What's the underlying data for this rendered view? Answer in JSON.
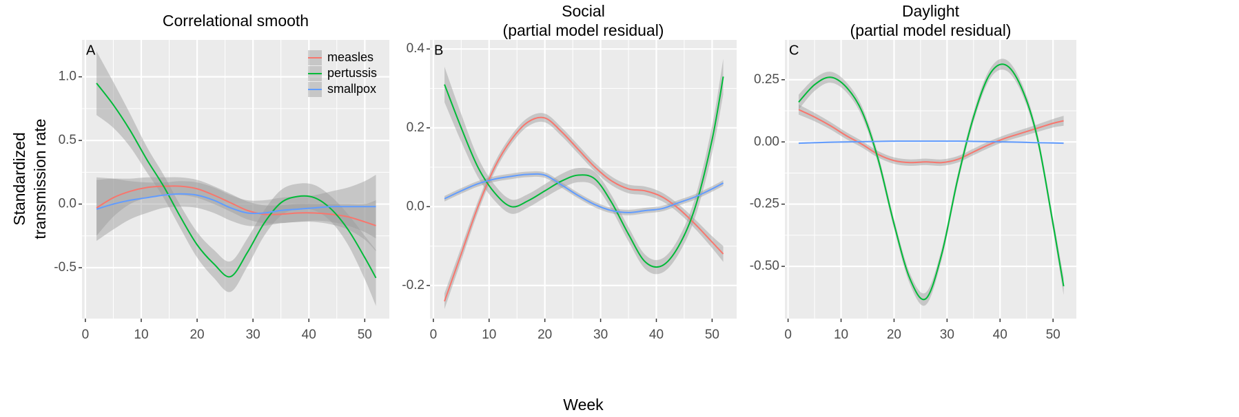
{
  "chart_data": [
    {
      "type": "line",
      "title": "Correlational smooth",
      "label": "A",
      "y_label": [
        "Standardized",
        "transmission rate"
      ],
      "x": [
        2,
        5,
        8,
        11,
        14,
        17,
        20,
        23,
        26,
        29,
        32,
        35,
        38,
        41,
        44,
        47,
        50,
        52
      ],
      "xlim": [
        -0.6,
        54.4
      ],
      "xticks": [
        0,
        10,
        20,
        30,
        40,
        50
      ],
      "ylim": [
        -0.9,
        1.29
      ],
      "yticks": [
        -0.5,
        {
          "value": 0,
          "label": "0.0"
        },
        0.5,
        {
          "value": 1,
          "label": "1.0"
        }
      ],
      "grid": true,
      "legend": "top-right",
      "band_color": "#999999",
      "series": [
        {
          "name": "measles",
          "color": "#F8766D",
          "values": [
            -0.03,
            0.05,
            0.1,
            0.13,
            0.14,
            0.14,
            0.12,
            0.07,
            0.01,
            -0.05,
            -0.08,
            -0.08,
            -0.07,
            -0.07,
            -0.08,
            -0.1,
            -0.14,
            -0.17
          ],
          "ci": [
            0.22,
            0.15,
            0.1,
            0.08,
            0.07,
            0.07,
            0.07,
            0.07,
            0.07,
            0.07,
            0.07,
            0.07,
            0.07,
            0.07,
            0.08,
            0.1,
            0.14,
            0.2
          ]
        },
        {
          "name": "pertussis",
          "color": "#00BA38",
          "values": [
            0.95,
            0.78,
            0.58,
            0.35,
            0.14,
            -0.1,
            -0.32,
            -0.47,
            -0.57,
            -0.38,
            -0.15,
            0.01,
            0.06,
            0.05,
            -0.04,
            -0.2,
            -0.42,
            -0.58
          ],
          "ci": [
            0.25,
            0.18,
            0.13,
            0.1,
            0.09,
            0.09,
            0.1,
            0.11,
            0.12,
            0.11,
            0.1,
            0.1,
            0.1,
            0.1,
            0.1,
            0.12,
            0.17,
            0.22
          ]
        },
        {
          "name": "smallpox",
          "color": "#619CFF",
          "values": [
            -0.04,
            0.0,
            0.03,
            0.05,
            0.07,
            0.08,
            0.07,
            0.03,
            -0.03,
            -0.07,
            -0.07,
            -0.05,
            -0.04,
            -0.03,
            -0.02,
            -0.02,
            -0.02,
            -0.02
          ],
          "ci": [
            0.25,
            0.2,
            0.15,
            0.12,
            0.1,
            0.1,
            0.1,
            0.1,
            0.1,
            0.1,
            0.1,
            0.1,
            0.1,
            0.1,
            0.12,
            0.15,
            0.2,
            0.25
          ]
        }
      ]
    },
    {
      "type": "line",
      "title": [
        "Social",
        "(partial model residual)"
      ],
      "label": "B",
      "x_label": "Week",
      "x": [
        2,
        5,
        8,
        11,
        14,
        17,
        20,
        23,
        26,
        29,
        32,
        35,
        38,
        41,
        44,
        47,
        50,
        52
      ],
      "xlim": [
        -0.6,
        54.4
      ],
      "xticks": [
        0,
        10,
        20,
        30,
        40,
        50
      ],
      "ylim": [
        -0.284,
        0.423
      ],
      "yticks": [
        -0.2,
        {
          "value": 0,
          "label": "0.0"
        },
        0.2,
        0.4
      ],
      "grid": true,
      "band_color": "#999999",
      "series": [
        {
          "color": "#F8766D",
          "values": [
            -0.24,
            -0.12,
            0.0,
            0.1,
            0.17,
            0.215,
            0.225,
            0.19,
            0.145,
            0.1,
            0.065,
            0.045,
            0.04,
            0.025,
            -0.005,
            -0.045,
            -0.09,
            -0.12
          ],
          "ci": [
            0.02,
            0.017,
            0.014,
            0.012,
            0.011,
            0.011,
            0.011,
            0.011,
            0.011,
            0.011,
            0.011,
            0.011,
            0.011,
            0.011,
            0.011,
            0.012,
            0.015,
            0.02
          ]
        },
        {
          "color": "#00BA38",
          "values": [
            0.31,
            0.2,
            0.1,
            0.035,
            0.0,
            0.015,
            0.04,
            0.065,
            0.08,
            0.07,
            0.01,
            -0.07,
            -0.14,
            -0.15,
            -0.1,
            0.0,
            0.17,
            0.33
          ],
          "ci": [
            0.045,
            0.035,
            0.025,
            0.02,
            0.018,
            0.017,
            0.017,
            0.018,
            0.018,
            0.018,
            0.018,
            0.018,
            0.018,
            0.018,
            0.02,
            0.025,
            0.035,
            0.045
          ]
        },
        {
          "color": "#619CFF",
          "values": [
            0.02,
            0.04,
            0.058,
            0.07,
            0.077,
            0.082,
            0.08,
            0.055,
            0.028,
            0.005,
            -0.01,
            -0.015,
            -0.01,
            -0.005,
            0.01,
            0.025,
            0.045,
            0.06
          ],
          "ci": [
            0.007,
            0.007,
            0.007,
            0.007,
            0.007,
            0.007,
            0.007,
            0.007,
            0.007,
            0.007,
            0.007,
            0.007,
            0.007,
            0.007,
            0.007,
            0.007,
            0.007,
            0.007
          ]
        }
      ]
    },
    {
      "type": "line",
      "title": [
        "Daylight",
        "(partial model residual)"
      ],
      "label": "C",
      "x": [
        2,
        5,
        8,
        11,
        14,
        17,
        20,
        23,
        26,
        29,
        32,
        35,
        38,
        41,
        44,
        47,
        50,
        52
      ],
      "xlim": [
        -0.6,
        54.4
      ],
      "xticks": [
        0,
        10,
        20,
        30,
        40,
        50
      ],
      "ylim": [
        -0.71,
        0.41
      ],
      "yticks": [
        {
          "value": -0.5,
          "label": "-0.50"
        },
        -0.25,
        {
          "value": 0,
          "label": "0.00"
        },
        0.25
      ],
      "grid": true,
      "band_color": "#999999",
      "series": [
        {
          "color": "#F8766D",
          "values": [
            0.13,
            0.1,
            0.065,
            0.025,
            -0.01,
            -0.05,
            -0.075,
            -0.083,
            -0.08,
            -0.083,
            -0.07,
            -0.04,
            -0.01,
            0.015,
            0.035,
            0.055,
            0.075,
            0.085
          ],
          "ci": [
            0.02,
            0.017,
            0.015,
            0.014,
            0.013,
            0.013,
            0.013,
            0.013,
            0.013,
            0.013,
            0.013,
            0.013,
            0.013,
            0.013,
            0.014,
            0.015,
            0.017,
            0.02
          ]
        },
        {
          "color": "#00BA38",
          "values": [
            0.16,
            0.23,
            0.26,
            0.22,
            0.12,
            -0.07,
            -0.33,
            -0.55,
            -0.63,
            -0.45,
            -0.15,
            0.1,
            0.27,
            0.31,
            0.22,
            0.02,
            -0.33,
            -0.58
          ],
          "ci": [
            0.03,
            0.025,
            0.022,
            0.02,
            0.02,
            0.02,
            0.02,
            0.022,
            0.025,
            0.022,
            0.02,
            0.02,
            0.02,
            0.022,
            0.02,
            0.02,
            0.025,
            0.035
          ]
        },
        {
          "color": "#619CFF",
          "values": [
            -0.005,
            -0.003,
            -0.001,
            0,
            0.001,
            0.002,
            0.003,
            0.003,
            0.003,
            0.003,
            0.003,
            0.002,
            0.001,
            0,
            -0.001,
            -0.003,
            -0.004,
            -0.005
          ],
          "ci": [
            0.003,
            0.003,
            0.003,
            0.003,
            0.003,
            0.003,
            0.003,
            0.003,
            0.003,
            0.003,
            0.003,
            0.003,
            0.003,
            0.003,
            0.003,
            0.003,
            0.003,
            0.003
          ]
        }
      ]
    }
  ]
}
